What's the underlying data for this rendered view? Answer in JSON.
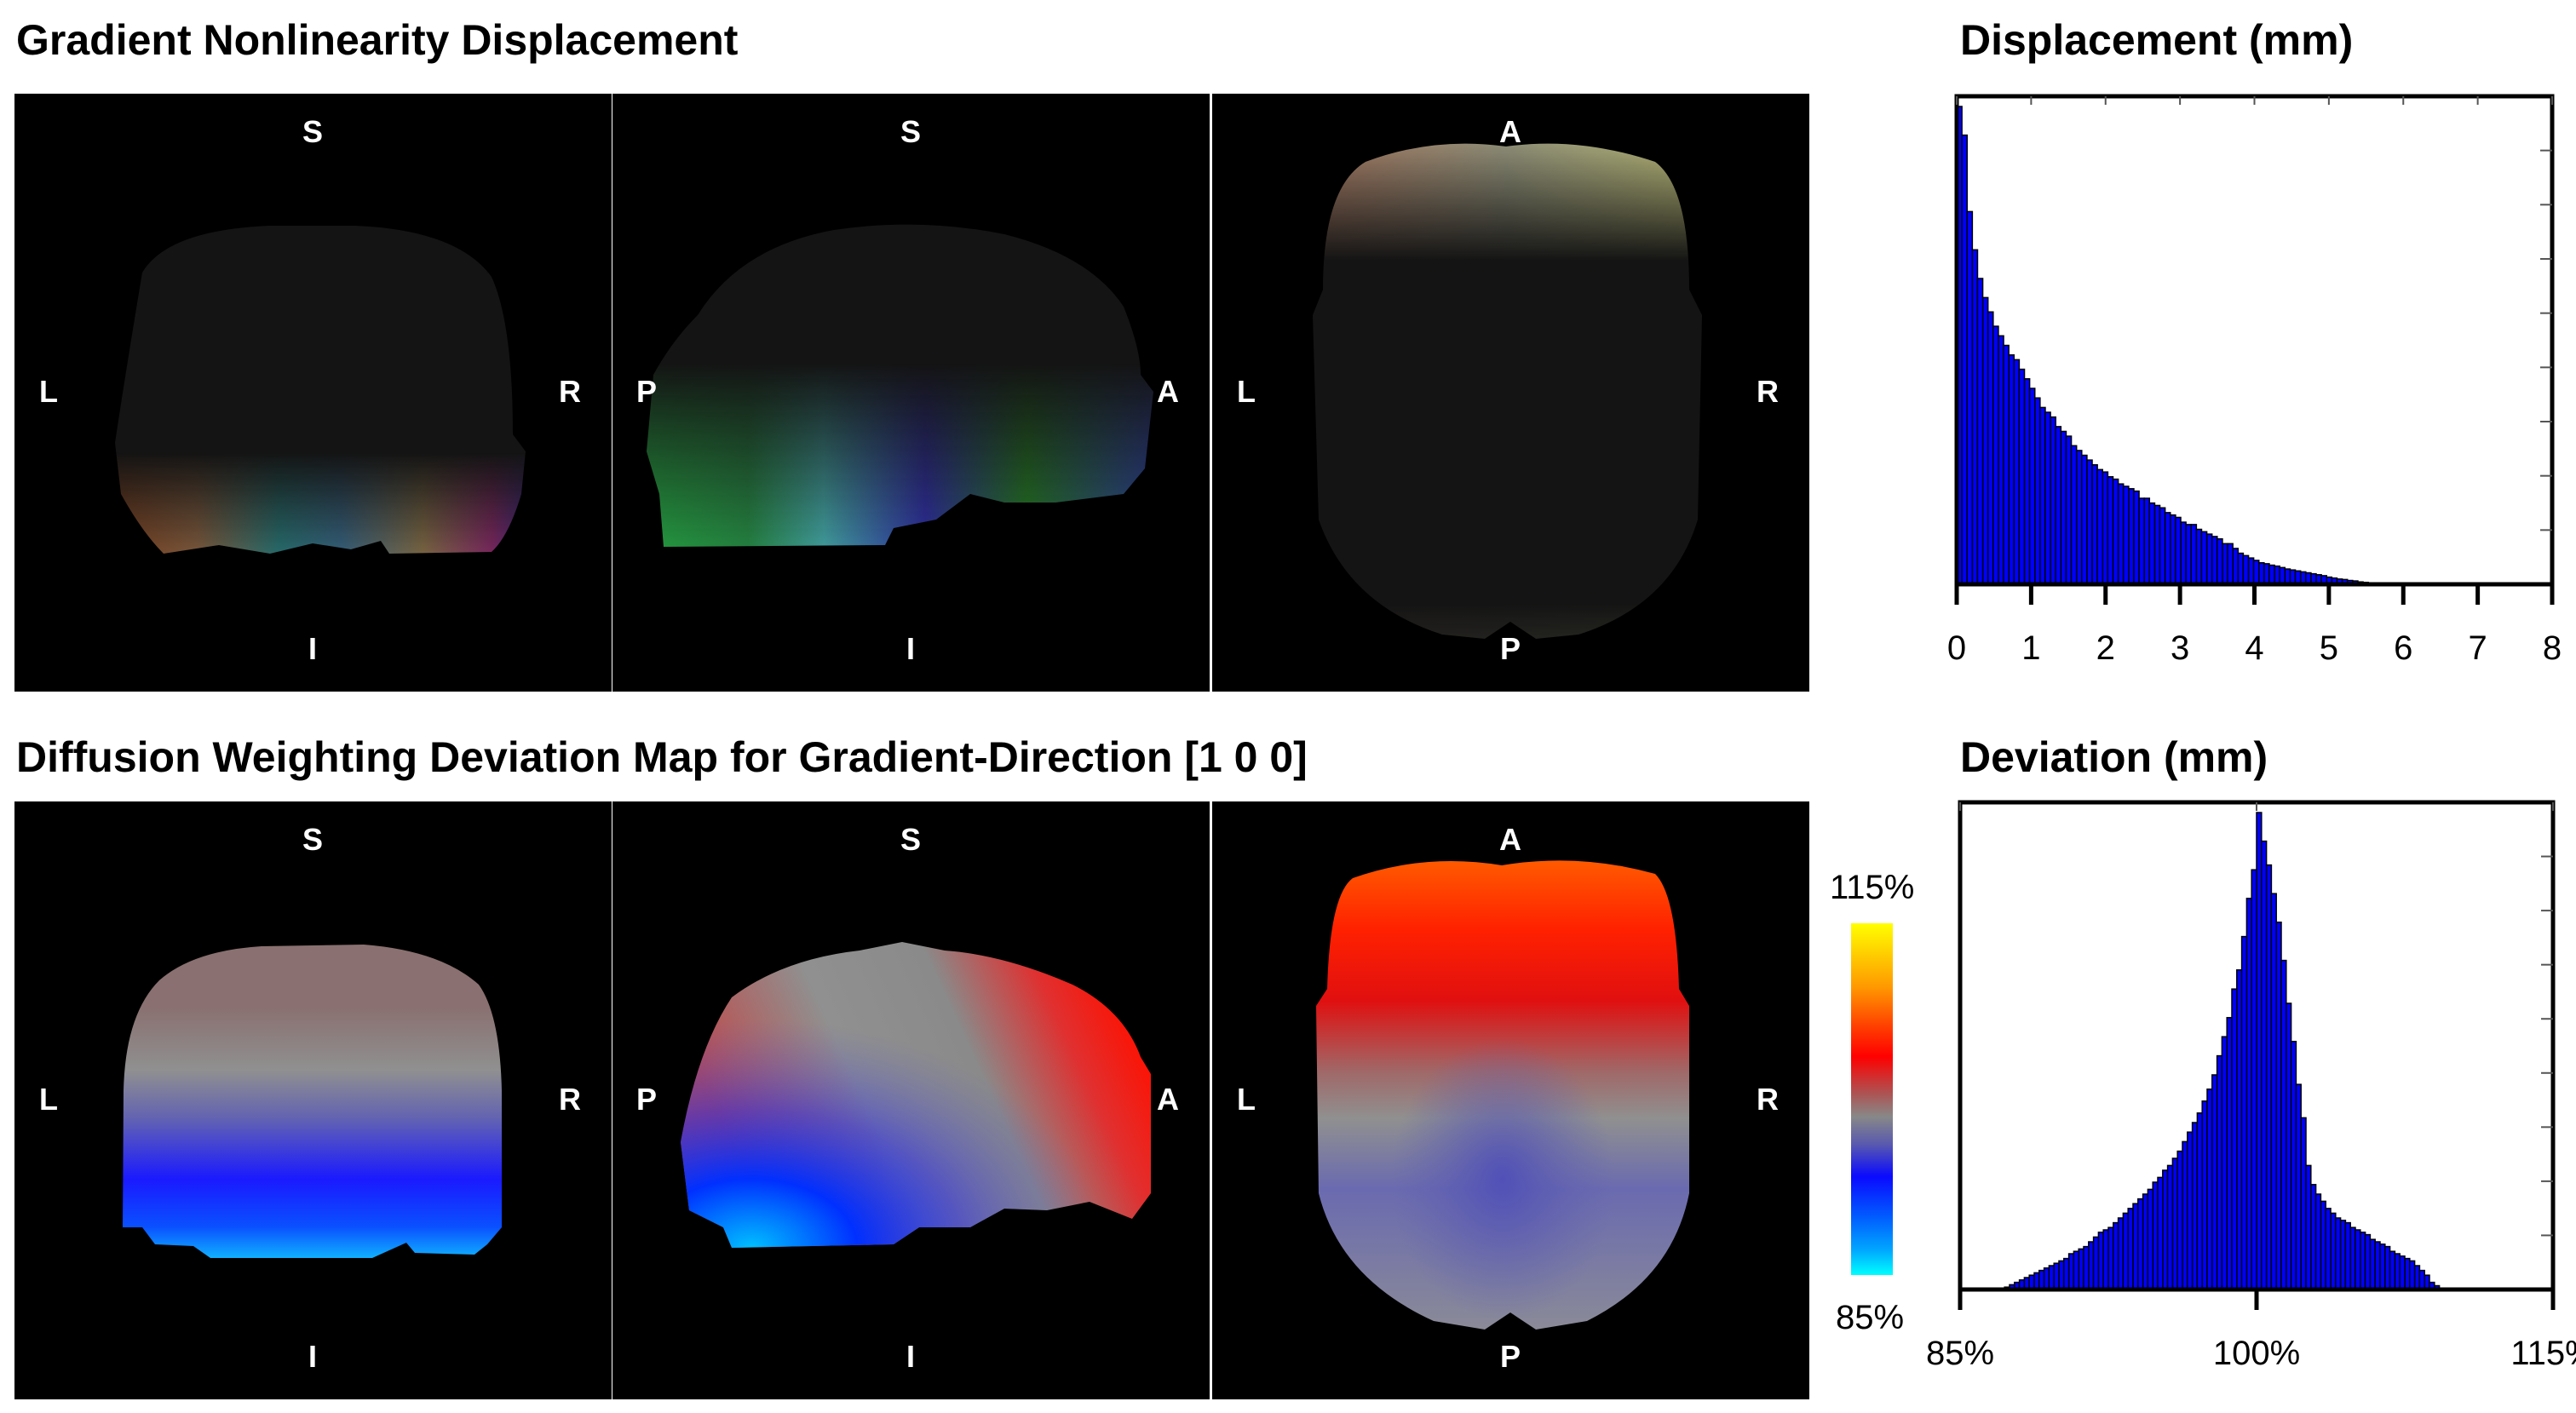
{
  "titles": {
    "top": "Gradient Nonlinearity Displacement",
    "bottom": "Diffusion Weighting Deviation Map for Gradient-Direction [1 0 0]"
  },
  "panels": {
    "coronal": {
      "top": "S",
      "bottom": "I",
      "left": "L",
      "right": "R"
    },
    "sagittal": {
      "top": "S",
      "bottom": "I",
      "left": "P",
      "right": "A"
    },
    "axial": {
      "top": "A",
      "bottom": "P",
      "left": "L",
      "right": "R"
    }
  },
  "colorbar": {
    "max_label": "115%",
    "min_label": "85%",
    "colors": [
      "#ffff00",
      "#ff0000",
      "#888888",
      "#0000ff",
      "#00ffff"
    ]
  },
  "colors": {
    "bar_fill": "#0000ff",
    "bar_edge": "#000000",
    "panel_bg": "#000000"
  },
  "chart_data": [
    {
      "type": "bar",
      "title": "Displacement (mm)",
      "xlabel": "",
      "ylabel": "",
      "xlim": [
        0,
        8
      ],
      "ylim": [
        0,
        100
      ],
      "xticks": [
        "0",
        "1",
        "2",
        "3",
        "4",
        "5",
        "6",
        "7",
        "8"
      ],
      "bin_start": 0,
      "bin_width": 0.07,
      "values": [
        100,
        94,
        78,
        70,
        64,
        60,
        57,
        54,
        52,
        50,
        48,
        47,
        45,
        43,
        41,
        39,
        37,
        36,
        35,
        33,
        32,
        31,
        29,
        28,
        27,
        26,
        25,
        24,
        23.5,
        22.5,
        22,
        21,
        20.5,
        20,
        19.5,
        18,
        18,
        17,
        16.5,
        16,
        15,
        14.5,
        14,
        13,
        12.5,
        12.5,
        11.5,
        11,
        10.5,
        10,
        9.5,
        8.5,
        8.5,
        7.5,
        6.5,
        6,
        5.5,
        5,
        4.5,
        4.3,
        4,
        3.8,
        3.5,
        3.2,
        3,
        2.8,
        2.6,
        2.4,
        2.2,
        2,
        1.8,
        1.5,
        1.3,
        1.1,
        1,
        0.8,
        0.7,
        0.5,
        0.4,
        0.3,
        0.2,
        0.2,
        0.1,
        0.1,
        0.1,
        0.1,
        0.05,
        0.05,
        0.05,
        0.05,
        0.05,
        0.05,
        0.05,
        0.05,
        0.05,
        0.05
      ],
      "grid": false
    },
    {
      "type": "bar",
      "title": "Deviation (mm)",
      "xlabel": "",
      "ylabel": "",
      "xlim": [
        85,
        115
      ],
      "ylim": [
        0,
        100
      ],
      "xticks": [
        "85%",
        "100%",
        "115%"
      ],
      "xtick_values": [
        85,
        100,
        115
      ],
      "bin_start": 87.25,
      "bin_width": 0.25,
      "values": [
        0.5,
        1,
        1.5,
        2,
        2.5,
        3,
        3.5,
        4,
        4.5,
        5,
        5.5,
        6,
        6.5,
        7.5,
        8,
        8.5,
        9,
        10,
        11,
        12,
        12.5,
        13,
        14,
        15,
        16,
        17,
        18,
        19,
        20,
        21,
        22.5,
        23.5,
        25,
        26,
        27.5,
        29,
        31,
        33,
        35,
        37,
        39.5,
        42,
        45,
        49,
        53,
        57,
        63,
        67,
        74,
        82,
        88,
        100,
        94,
        89,
        83,
        77,
        69,
        60,
        52,
        43,
        36,
        26,
        22,
        20,
        18.5,
        17,
        16,
        15,
        14.5,
        14,
        13,
        12.5,
        12,
        11.5,
        10.5,
        10,
        9.5,
        9,
        8,
        7.5,
        7,
        6.5,
        6,
        5,
        4,
        3,
        1.5,
        0.8,
        0.3
      ],
      "grid": false
    }
  ]
}
